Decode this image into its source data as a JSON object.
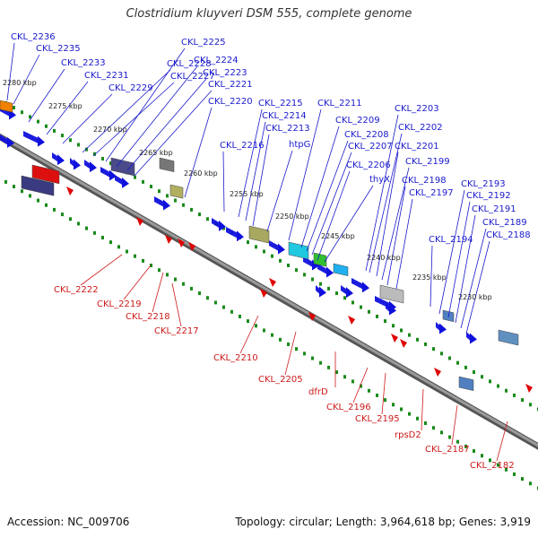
{
  "title": "Clostridium kluyveri DSM 555, complete genome",
  "footer": {
    "accession": "Accession: NC_009706",
    "summary": "Topology: circular; Length: 3,964,618 bp; Genes: 3,919"
  },
  "colors": {
    "forward_label": "#1a1acc",
    "reverse_label": "#cc1a1a",
    "backbone": "#7a7a7a",
    "tick_green": "#1a8a1a",
    "cds": "#1010dd",
    "rna": "#e00000"
  },
  "scale_labels": [
    "2280 kbp",
    "2275 kbp",
    "2270 kbp",
    "2265 kbp",
    "2260 kbp",
    "2255 kbp",
    "2250 kbp",
    "2245 kbp",
    "2240 kbp",
    "2235 kbp",
    "2230 kbp"
  ],
  "forward_labels": [
    "CKL_2236",
    "CKL_2235",
    "CKL_2233",
    "CKL_2231",
    "CKL_2229",
    "CKL_2228",
    "CKL_2227",
    "CKL_2225",
    "CKL_2224",
    "CKL_2223",
    "CKL_2221",
    "CKL_2220",
    "CKL_2216",
    "CKL_2215",
    "CKL_2214",
    "CKL_2213",
    "htpG",
    "CKL_2211",
    "CKL_2209",
    "CKL_2208",
    "CKL_2207",
    "CKL_2206",
    "thyX",
    "CKL_2203",
    "CKL_2202",
    "CKL_2201",
    "CKL_2199",
    "CKL_2198",
    "CKL_2197",
    "CKL_2194",
    "CKL_2193",
    "CKL_2192",
    "CKL_2191",
    "CKL_2189",
    "CKL_2188"
  ],
  "reverse_labels": [
    "CKL_2222",
    "CKL_2219",
    "CKL_2218",
    "CKL_2217",
    "CKL_2210",
    "CKL_2205",
    "dfrD",
    "CKL_2196",
    "CKL_2195",
    "rpsD2",
    "CKL_2187",
    "CKL_2182"
  ]
}
